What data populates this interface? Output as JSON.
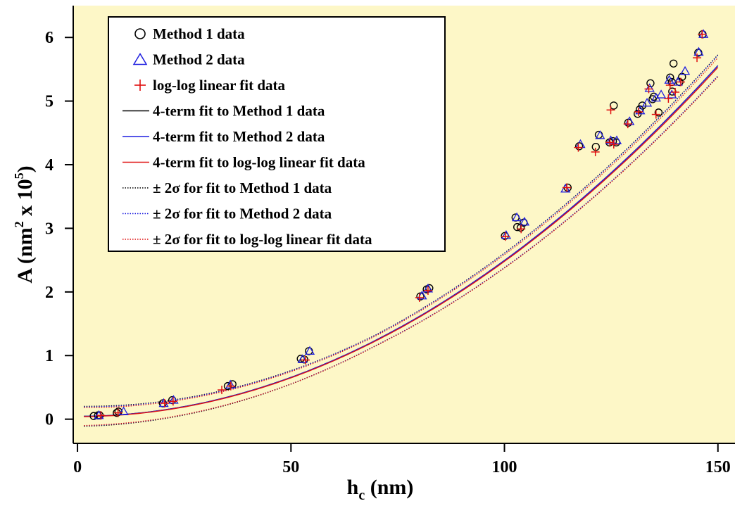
{
  "chart_data": {
    "type": "scatter",
    "xlabel_main": "h",
    "xlabel_sub": "c",
    "xlabel_unit": " (nm)",
    "ylabel_main": "A (nm",
    "ylabel_sup1": "2",
    "ylabel_mid": " x 10",
    "ylabel_sup2": "5",
    "ylabel_end": ")",
    "xlim": [
      -1,
      154
    ],
    "ylim": [
      -0.38,
      6.5
    ],
    "xticks": [
      0,
      50,
      100,
      150
    ],
    "yticks": [
      0,
      1,
      2,
      3,
      4,
      5,
      6
    ],
    "background": "#fdf7c7",
    "legend_position": "top-left",
    "colors": {
      "method1": "#000000",
      "method2": "#1f1fe0",
      "loglog": "#e01010"
    },
    "legend": [
      {
        "label": "Method 1 data",
        "marker": "circle",
        "color": "#000000"
      },
      {
        "label": "Method 2 data",
        "marker": "triangle",
        "color": "#1f1fe0"
      },
      {
        "label": "log-log linear fit data",
        "marker": "plus",
        "color": "#e01010"
      },
      {
        "label": "4-term fit to Method 1 data",
        "marker": "line",
        "color": "#000000"
      },
      {
        "label": "4-term fit to Method 2 data",
        "marker": "line",
        "color": "#1f1fe0"
      },
      {
        "label": "4-term fit to log-log linear fit data",
        "marker": "line",
        "color": "#e01010"
      },
      {
        "label": "± 2σ for fit to Method 1 data",
        "marker": "dotted",
        "color": "#000000"
      },
      {
        "label": "± 2σ for fit to Method 2 data",
        "marker": "dotted",
        "color": "#1f1fe0"
      },
      {
        "label": "± 2σ for fit to log-log linear fit data",
        "marker": "dotted",
        "color": "#e01010"
      }
    ],
    "series": [
      {
        "name": "Method 1 data",
        "marker": "circle",
        "points": [
          [
            3.8,
            0.05
          ],
          [
            4.8,
            0.06
          ],
          [
            5.2,
            0.06
          ],
          [
            9.2,
            0.1
          ],
          [
            9.6,
            0.12
          ],
          [
            20,
            0.25
          ],
          [
            22.2,
            0.3
          ],
          [
            35.2,
            0.52
          ],
          [
            36.3,
            0.55
          ],
          [
            52.3,
            0.95
          ],
          [
            53.1,
            0.94
          ],
          [
            54.2,
            1.07
          ],
          [
            80.3,
            1.93
          ],
          [
            81.8,
            2.04
          ],
          [
            82.4,
            2.06
          ],
          [
            100.1,
            2.88
          ],
          [
            102.6,
            3.17
          ],
          [
            103,
            3.02
          ],
          [
            103.8,
            3.01
          ],
          [
            104.5,
            3.09
          ],
          [
            114.8,
            3.64
          ],
          [
            117.5,
            4.29
          ],
          [
            121.4,
            4.28
          ],
          [
            122.1,
            4.47
          ],
          [
            124.6,
            4.35
          ],
          [
            125.4,
            4.37
          ],
          [
            125.6,
            4.93
          ],
          [
            126.2,
            4.35
          ],
          [
            129,
            4.66
          ],
          [
            131.2,
            4.8
          ],
          [
            131.7,
            4.87
          ],
          [
            132.3,
            4.93
          ],
          [
            134.2,
            5.28
          ],
          [
            134.7,
            5.03
          ],
          [
            135,
            5.07
          ],
          [
            136.1,
            4.82
          ],
          [
            138.8,
            5.37
          ],
          [
            139.3,
            5.15
          ],
          [
            139.2,
            5.3
          ],
          [
            139.6,
            5.59
          ],
          [
            141,
            5.3
          ],
          [
            141.6,
            5.38
          ],
          [
            145.4,
            5.76
          ],
          [
            146.4,
            6.05
          ]
        ]
      },
      {
        "name": "Method 2 data",
        "marker": "triangle",
        "points": [
          [
            5,
            0.06
          ],
          [
            10.8,
            0.12
          ],
          [
            20.2,
            0.25
          ],
          [
            22.5,
            0.3
          ],
          [
            35.8,
            0.54
          ],
          [
            52.7,
            0.94
          ],
          [
            54.4,
            1.07
          ],
          [
            80.7,
            1.94
          ],
          [
            82.1,
            2.05
          ],
          [
            100.4,
            2.89
          ],
          [
            102.9,
            3.17
          ],
          [
            104.7,
            3.1
          ],
          [
            114.3,
            3.62
          ],
          [
            117.8,
            4.32
          ],
          [
            122.4,
            4.46
          ],
          [
            124.9,
            4.38
          ],
          [
            126.3,
            4.38
          ],
          [
            129.3,
            4.68
          ],
          [
            131.8,
            4.85
          ],
          [
            133.4,
            4.97
          ],
          [
            134,
            5.2
          ],
          [
            135.5,
            5.05
          ],
          [
            136.7,
            5.1
          ],
          [
            138.6,
            5.33
          ],
          [
            139.2,
            5.1
          ],
          [
            140.6,
            5.3
          ],
          [
            142.3,
            5.47
          ],
          [
            145.5,
            5.77
          ],
          [
            146.6,
            6.05
          ]
        ]
      },
      {
        "name": "log-log linear fit data",
        "marker": "plus",
        "points": [
          [
            5.5,
            0.06
          ],
          [
            9.5,
            0.1
          ],
          [
            20.4,
            0.25
          ],
          [
            22.4,
            0.28
          ],
          [
            33.8,
            0.46
          ],
          [
            35.9,
            0.52
          ],
          [
            53.4,
            0.93
          ],
          [
            80.1,
            1.91
          ],
          [
            82.1,
            2.02
          ],
          [
            100.2,
            2.87
          ],
          [
            103.9,
            2.99
          ],
          [
            114.6,
            3.64
          ],
          [
            117.3,
            4.27
          ],
          [
            121.3,
            4.2
          ],
          [
            124.7,
            4.35
          ],
          [
            124.9,
            4.86
          ],
          [
            125.6,
            4.32
          ],
          [
            128.9,
            4.64
          ],
          [
            131.4,
            4.83
          ],
          [
            133.8,
            5.19
          ],
          [
            135.5,
            4.79
          ],
          [
            138.4,
            5.04
          ],
          [
            138.8,
            5.25
          ],
          [
            140,
            5.14
          ],
          [
            141.3,
            5.3
          ],
          [
            145.1,
            5.68
          ],
          [
            146.3,
            6.05
          ]
        ]
      }
    ],
    "fit_curves": [
      {
        "name": "4-term fit to Method 1 data",
        "color": "#000000",
        "coeffs": {
          "C0": 24.5,
          "C1": 0.0,
          "C2": 0.03,
          "C3": 0.0
        },
        "band": 0.13
      },
      {
        "name": "4-term fit to Method 2 data",
        "color": "#1f1fe0",
        "coeffs": {
          "C0": 24.5,
          "C1": 0.0,
          "C2": 0.03,
          "C3": 0.0
        },
        "band": 0.12
      },
      {
        "name": "4-term fit to log-log linear fit data",
        "color": "#e01010",
        "coeffs": {
          "C0": 24.4,
          "C1": 0.0,
          "C2": 0.028,
          "C3": 0.0
        },
        "band": 0.11
      }
    ],
    "fit_xrange": [
      1.5,
      150
    ]
  }
}
